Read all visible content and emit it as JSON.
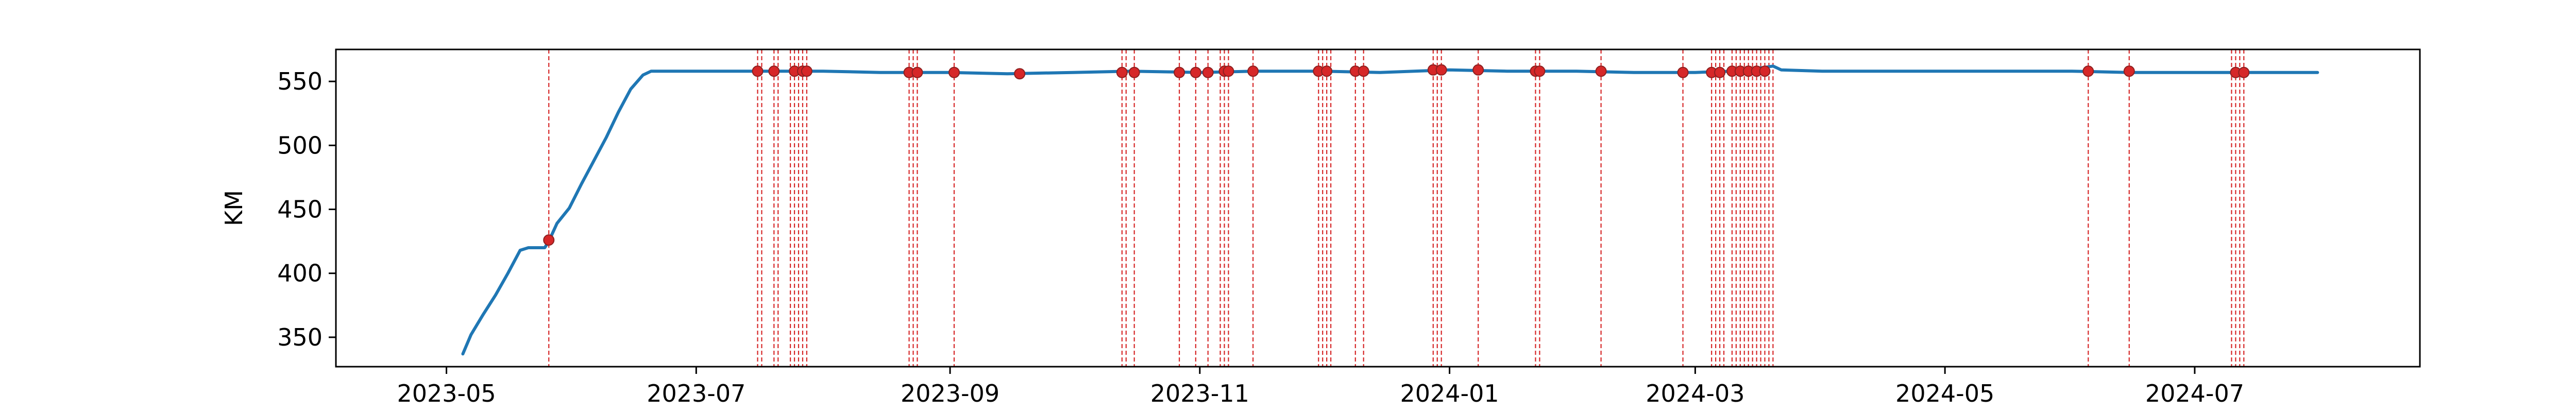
{
  "chart_data": {
    "type": "line",
    "title": "",
    "xlabel": "",
    "ylabel": "KM",
    "x_axis_type": "date",
    "xlim": [
      "2023-04-04",
      "2024-08-25"
    ],
    "ylim": [
      327,
      575
    ],
    "grid": false,
    "legend": "none",
    "xticks": [
      "2023-05",
      "2023-07",
      "2023-09",
      "2023-11",
      "2024-01",
      "2024-03",
      "2024-05",
      "2024-07"
    ],
    "xtick_dates": [
      "2023-05-01",
      "2023-07-01",
      "2023-09-01",
      "2023-11-01",
      "2024-01-01",
      "2024-03-01",
      "2024-05-01",
      "2024-07-01"
    ],
    "yticks": [
      350,
      400,
      450,
      500,
      550
    ],
    "colors": {
      "line": "#1f77b4",
      "events": "#d62728",
      "markers": "#d62728"
    },
    "series": [
      {
        "x": [
          "2023-05-05",
          "2023-05-07",
          "2023-05-10",
          "2023-05-13",
          "2023-05-16",
          "2023-05-19",
          "2023-05-21",
          "2023-05-23",
          "2023-05-25",
          "2023-05-26",
          "2023-05-28",
          "2023-05-31",
          "2023-06-03",
          "2023-06-06",
          "2023-06-09",
          "2023-06-12",
          "2023-06-15",
          "2023-06-18",
          "2023-06-20",
          "2023-06-25",
          "2023-07-01",
          "2023-07-15",
          "2023-08-01",
          "2023-08-15",
          "2023-09-01",
          "2023-09-15",
          "2023-10-01",
          "2023-10-15",
          "2023-11-01",
          "2023-11-15",
          "2023-12-01",
          "2023-12-15",
          "2024-01-01",
          "2024-01-15",
          "2024-02-01",
          "2024-02-15",
          "2024-03-01",
          "2024-03-10",
          "2024-03-18",
          "2024-03-20",
          "2024-03-22",
          "2024-04-01",
          "2024-04-15",
          "2024-05-01",
          "2024-05-15",
          "2024-06-01",
          "2024-06-15",
          "2024-07-01",
          "2024-07-15",
          "2024-07-31"
        ],
        "y": [
          337,
          352,
          368,
          383,
          400,
          418,
          420,
          420,
          420,
          425,
          439,
          451,
          470,
          488,
          506,
          526,
          544,
          555,
          558,
          558,
          558,
          558,
          558,
          557,
          557,
          556,
          557,
          558,
          557,
          558,
          558,
          557,
          559,
          558,
          558,
          557,
          557,
          558,
          561,
          562,
          559,
          558,
          558,
          558,
          558,
          558,
          557,
          557,
          557,
          557
        ]
      }
    ],
    "event_lines": [
      "2023-05-26",
      "2023-07-16",
      "2023-07-17",
      "2023-07-20",
      "2023-07-21",
      "2023-07-24",
      "2023-07-25",
      "2023-07-26",
      "2023-07-27",
      "2023-07-28",
      "2023-08-22",
      "2023-08-23",
      "2023-08-24",
      "2023-09-02",
      "2023-10-13",
      "2023-10-14",
      "2023-10-16",
      "2023-10-27",
      "2023-10-31",
      "2023-11-03",
      "2023-11-06",
      "2023-11-07",
      "2023-11-08",
      "2023-11-14",
      "2023-11-30",
      "2023-12-01",
      "2023-12-02",
      "2023-12-03",
      "2023-12-09",
      "2023-12-11",
      "2023-12-28",
      "2023-12-29",
      "2023-12-30",
      "2024-01-08",
      "2024-01-22",
      "2024-01-23",
      "2024-02-07",
      "2024-02-27",
      "2024-03-05",
      "2024-03-06",
      "2024-03-07",
      "2024-03-08",
      "2024-03-10",
      "2024-03-11",
      "2024-03-12",
      "2024-03-13",
      "2024-03-14",
      "2024-03-15",
      "2024-03-16",
      "2024-03-17",
      "2024-03-18",
      "2024-03-19",
      "2024-03-20",
      "2024-06-05",
      "2024-06-15",
      "2024-07-10",
      "2024-07-11",
      "2024-07-12",
      "2024-07-13"
    ],
    "event_markers": [
      {
        "x": "2023-05-26",
        "y": 426
      },
      {
        "x": "2023-07-16",
        "y": 558
      },
      {
        "x": "2023-07-20",
        "y": 558
      },
      {
        "x": "2023-07-25",
        "y": 558
      },
      {
        "x": "2023-07-27",
        "y": 558
      },
      {
        "x": "2023-07-28",
        "y": 558
      },
      {
        "x": "2023-08-22",
        "y": 557
      },
      {
        "x": "2023-08-24",
        "y": 557
      },
      {
        "x": "2023-09-02",
        "y": 557
      },
      {
        "x": "2023-09-18",
        "y": 556
      },
      {
        "x": "2023-10-13",
        "y": 557
      },
      {
        "x": "2023-10-16",
        "y": 557
      },
      {
        "x": "2023-10-27",
        "y": 557
      },
      {
        "x": "2023-10-31",
        "y": 557
      },
      {
        "x": "2023-11-03",
        "y": 557
      },
      {
        "x": "2023-11-07",
        "y": 558
      },
      {
        "x": "2023-11-08",
        "y": 558
      },
      {
        "x": "2023-11-14",
        "y": 558
      },
      {
        "x": "2023-11-30",
        "y": 558
      },
      {
        "x": "2023-12-02",
        "y": 558
      },
      {
        "x": "2023-12-09",
        "y": 558
      },
      {
        "x": "2023-12-11",
        "y": 558
      },
      {
        "x": "2023-12-28",
        "y": 559
      },
      {
        "x": "2023-12-30",
        "y": 559
      },
      {
        "x": "2024-01-08",
        "y": 559
      },
      {
        "x": "2024-01-22",
        "y": 558
      },
      {
        "x": "2024-01-23",
        "y": 558
      },
      {
        "x": "2024-02-07",
        "y": 558
      },
      {
        "x": "2024-02-27",
        "y": 557
      },
      {
        "x": "2024-03-05",
        "y": 557
      },
      {
        "x": "2024-03-07",
        "y": 557
      },
      {
        "x": "2024-03-10",
        "y": 558
      },
      {
        "x": "2024-03-12",
        "y": 558
      },
      {
        "x": "2024-03-14",
        "y": 558
      },
      {
        "x": "2024-03-16",
        "y": 558
      },
      {
        "x": "2024-03-18",
        "y": 558
      },
      {
        "x": "2024-06-05",
        "y": 558
      },
      {
        "x": "2024-06-15",
        "y": 558
      },
      {
        "x": "2024-07-11",
        "y": 557
      },
      {
        "x": "2024-07-13",
        "y": 557
      }
    ]
  }
}
